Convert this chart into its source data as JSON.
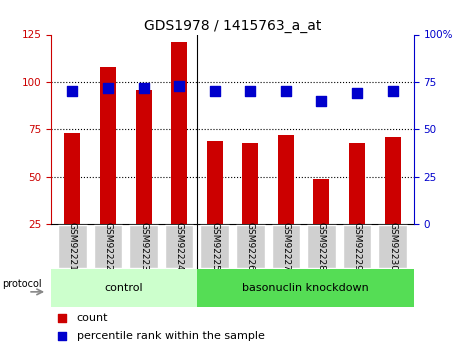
{
  "title": "GDS1978 / 1415763_a_at",
  "samples": [
    "GSM92221",
    "GSM92222",
    "GSM92223",
    "GSM92224",
    "GSM92225",
    "GSM92226",
    "GSM92227",
    "GSM92228",
    "GSM92229",
    "GSM92230"
  ],
  "counts": [
    73,
    108,
    96,
    121,
    69,
    68,
    72,
    49,
    68,
    71
  ],
  "percentiles": [
    70,
    72,
    72,
    73,
    70,
    70,
    70,
    65,
    69,
    70
  ],
  "left_ylim": [
    25,
    125
  ],
  "right_ylim": [
    0,
    100
  ],
  "left_yticks": [
    25,
    50,
    75,
    100,
    125
  ],
  "right_yticks": [
    0,
    25,
    50,
    75,
    100
  ],
  "right_yticklabels": [
    "0",
    "25",
    "50",
    "75",
    "100%"
  ],
  "bar_color": "#cc0000",
  "dot_color": "#0000cc",
  "control_label": "control",
  "knockdown_label": "basonuclin knockdown",
  "control_count": 4,
  "knockdown_count": 6,
  "protocol_label": "protocol",
  "legend_count_label": "count",
  "legend_percentile_label": "percentile rank within the sample",
  "control_bg": "#ccffcc",
  "knockdown_bg": "#55dd55",
  "tick_bg": "#d0d0d0",
  "left_axis_color": "#cc0000",
  "right_axis_color": "#0000cc",
  "bar_width": 0.45,
  "dot_size": 45,
  "dotted_line_y": [
    50,
    75,
    100
  ]
}
